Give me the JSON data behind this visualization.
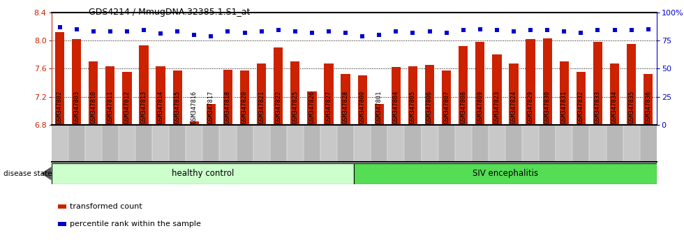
{
  "title": "GDS4214 / MmugDNA.32385.1.S1_at",
  "samples": [
    "GSM347802",
    "GSM347803",
    "GSM347810",
    "GSM347811",
    "GSM347812",
    "GSM347813",
    "GSM347814",
    "GSM347815",
    "GSM347816",
    "GSM347817",
    "GSM347818",
    "GSM347820",
    "GSM347821",
    "GSM347822",
    "GSM347825",
    "GSM347826",
    "GSM347827",
    "GSM347828",
    "GSM347800",
    "GSM347801",
    "GSM347804",
    "GSM347805",
    "GSM347806",
    "GSM347807",
    "GSM347808",
    "GSM347809",
    "GSM347823",
    "GSM347824",
    "GSM347829",
    "GSM347830",
    "GSM347831",
    "GSM347832",
    "GSM347833",
    "GSM347834",
    "GSM347835",
    "GSM347836"
  ],
  "bar_values": [
    8.12,
    8.02,
    7.7,
    7.63,
    7.55,
    7.93,
    7.63,
    7.57,
    6.85,
    7.1,
    7.58,
    7.57,
    7.67,
    7.9,
    7.7,
    7.27,
    7.67,
    7.52,
    7.5,
    7.1,
    7.62,
    7.63,
    7.65,
    7.57,
    7.92,
    7.98,
    7.8,
    7.67,
    8.02,
    8.03,
    7.7,
    7.55,
    7.98,
    7.67,
    7.95,
    7.52
  ],
  "percentile_values": [
    87,
    85,
    83,
    83,
    83,
    84,
    81,
    83,
    80,
    79,
    83,
    82,
    83,
    84,
    83,
    82,
    83,
    82,
    79,
    80,
    83,
    82,
    83,
    82,
    84,
    85,
    84,
    83,
    84,
    84,
    83,
    82,
    84,
    84,
    84,
    85
  ],
  "healthy_control_count": 18,
  "ylim_left": [
    6.8,
    8.4
  ],
  "ylim_right": [
    0,
    100
  ],
  "yticks_left": [
    6.8,
    7.2,
    7.6,
    8.0,
    8.4
  ],
  "yticks_right": [
    0,
    25,
    50,
    75,
    100
  ],
  "ytick_labels_right": [
    "0",
    "25",
    "50",
    "75",
    "100%"
  ],
  "bar_color": "#cc2200",
  "dot_color": "#0000cc",
  "healthy_color": "#ccffcc",
  "siv_color": "#55dd55",
  "healthy_label": "healthy control",
  "siv_label": "SIV encephalitis",
  "disease_state_label": "disease state",
  "legend_bar_label": "transformed count",
  "legend_dot_label": "percentile rank within the sample",
  "plot_bg_color": "#ffffff",
  "xtick_bg_color": "#c8c8c8",
  "grid_dotted_values": [
    8.0,
    7.6,
    7.2
  ]
}
